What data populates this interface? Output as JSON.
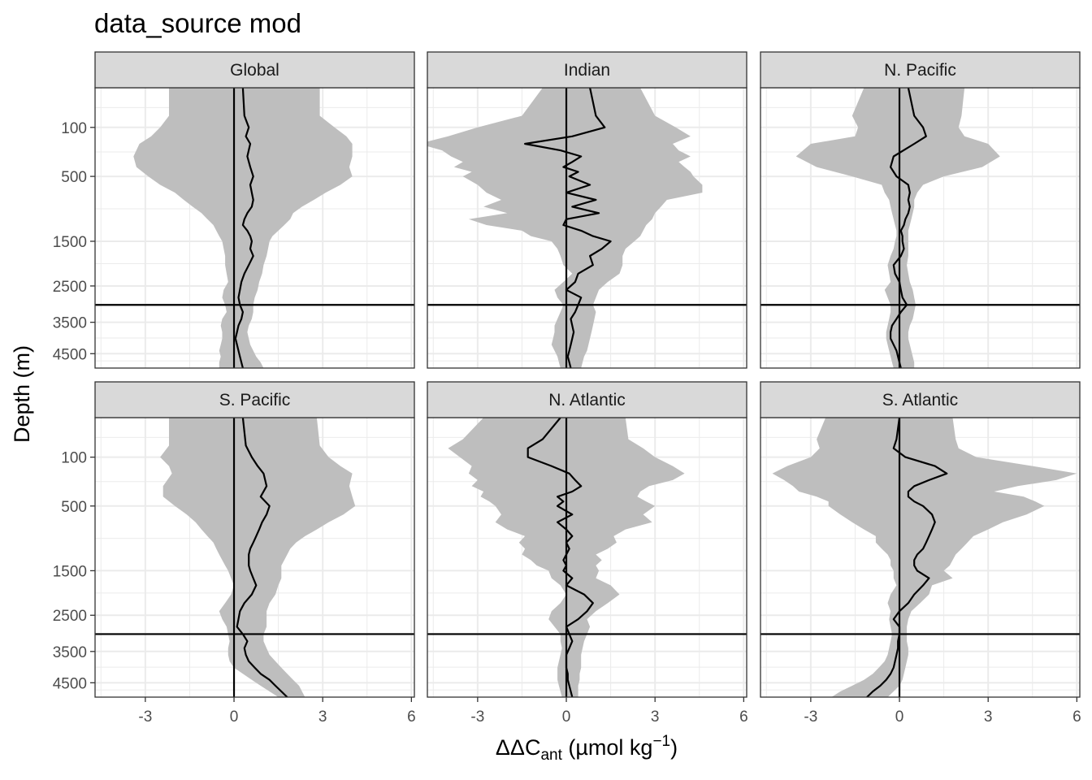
{
  "title": "data_source mod",
  "chart_data": {
    "type": "line",
    "title": "data_source mod",
    "xlabel": "ΔΔCant (µmol kg−1)",
    "xlabel_parts": {
      "main": "ΔΔC",
      "sub": "ant",
      "units_open": " (µmol kg",
      "sup": "−1",
      "units_close": ")"
    },
    "ylabel": "Depth (m)",
    "xlim": [
      -4.7,
      6.1
    ],
    "x_ticks": [
      -3,
      0,
      3,
      6
    ],
    "x_tick_labels": [
      "-3",
      "0",
      "3",
      "6"
    ],
    "y_transform": "sqrt (reversed)",
    "ylim": [
      5000,
      0
    ],
    "y_ticks": [
      100,
      500,
      1500,
      2500,
      3500,
      4500
    ],
    "y_tick_labels": [
      "100",
      "500",
      "1500",
      "2500",
      "3500",
      "4500"
    ],
    "reference_lines": {
      "vertical_x": 0,
      "horizontal_depth": 3000
    },
    "grid": true,
    "colors": {
      "line": "#000000",
      "ribbon": "#bebebe",
      "strip_fill": "#d9d9d9",
      "grid": "#ebebeb"
    },
    "panels": [
      {
        "name": "Global",
        "depth": [
          0,
          50,
          100,
          150,
          200,
          300,
          400,
          500,
          600,
          700,
          800,
          900,
          1000,
          1100,
          1200,
          1300,
          1400,
          1500,
          1650,
          1800,
          2000,
          2200,
          2400,
          2600,
          2800,
          3000,
          3200,
          3400,
          3600,
          3800,
          4000,
          4200,
          4400,
          4600,
          4800,
          5000
        ],
        "mean": [
          0.3,
          0.35,
          0.5,
          0.4,
          0.55,
          0.45,
          0.55,
          0.65,
          0.55,
          0.6,
          0.65,
          0.6,
          0.45,
          0.35,
          0.3,
          0.45,
          0.55,
          0.6,
          0.55,
          0.65,
          0.5,
          0.35,
          0.25,
          0.2,
          0.15,
          0.2,
          0.3,
          0.25,
          0.15,
          0.1,
          0.05,
          0.1,
          0.15,
          0.2,
          0.25,
          0.3
        ],
        "lower": [
          -2.2,
          -2.2,
          -2.5,
          -2.8,
          -3.2,
          -3.4,
          -3.3,
          -2.9,
          -2.5,
          -2.0,
          -1.7,
          -1.4,
          -1.1,
          -0.9,
          -0.7,
          -0.6,
          -0.5,
          -0.4,
          -0.35,
          -0.3,
          -0.3,
          -0.25,
          -0.2,
          -0.35,
          -0.4,
          -0.3,
          -0.25,
          -0.4,
          -0.45,
          -0.4,
          -0.4,
          -0.45,
          -0.5,
          -0.45,
          -0.5,
          -0.5
        ],
        "upper": [
          2.9,
          2.9,
          3.4,
          3.8,
          4.0,
          4.0,
          3.9,
          4.0,
          3.6,
          3.1,
          2.7,
          2.3,
          2.0,
          1.9,
          1.7,
          1.5,
          1.3,
          1.2,
          1.15,
          1.1,
          1.0,
          0.95,
          0.85,
          0.8,
          0.7,
          0.65,
          0.65,
          0.6,
          0.5,
          0.45,
          0.5,
          0.55,
          0.65,
          0.75,
          0.9,
          1.0
        ]
      },
      {
        "name": "Indian",
        "depth": [
          0,
          50,
          100,
          150,
          200,
          250,
          300,
          350,
          400,
          450,
          500,
          600,
          700,
          800,
          900,
          1000,
          1100,
          1200,
          1300,
          1400,
          1500,
          1650,
          1800,
          2000,
          2200,
          2400,
          2600,
          2800,
          3000,
          3200,
          3400,
          3600,
          3800,
          4000,
          4200,
          4400,
          4600,
          4800,
          5000
        ],
        "mean": [
          0.8,
          1.0,
          1.3,
          0.2,
          -1.4,
          -0.2,
          0.5,
          0.2,
          -0.1,
          0.4,
          0.1,
          0.8,
          0.0,
          1.0,
          0.2,
          1.1,
          0.0,
          -0.1,
          0.5,
          0.9,
          1.5,
          1.2,
          0.8,
          0.9,
          0.4,
          0.3,
          0.0,
          0.5,
          0.4,
          0.3,
          0.15,
          0.2,
          0.25,
          0.2,
          0.15,
          0.1,
          0.05,
          0.1,
          0.15
        ],
        "lower": [
          -0.8,
          -1.5,
          -3.0,
          -4.0,
          -5.0,
          -4.2,
          -3.9,
          -3.5,
          -3.8,
          -3.2,
          -3.5,
          -3.0,
          -2.7,
          -2.2,
          -2.8,
          -2.0,
          -3.3,
          -2.7,
          -1.5,
          -1.2,
          -0.5,
          -0.3,
          -0.2,
          -0.1,
          0.2,
          -0.1,
          -0.4,
          -0.3,
          -0.1,
          -0.2,
          -0.3,
          -0.4,
          -0.4,
          -0.45,
          -0.5,
          -0.4,
          -0.3,
          -0.25,
          -0.2
        ],
        "upper": [
          2.5,
          3.0,
          3.7,
          4.2,
          3.6,
          3.8,
          4.2,
          3.8,
          4.0,
          4.2,
          4.3,
          4.6,
          4.6,
          3.4,
          3.2,
          3.0,
          2.9,
          2.7,
          2.6,
          2.5,
          2.3,
          2.0,
          1.9,
          1.9,
          1.8,
          1.4,
          1.1,
          1.0,
          0.9,
          1.0,
          0.95,
          0.9,
          0.85,
          0.8,
          0.75,
          0.7,
          0.6,
          0.55,
          0.5
        ]
      },
      {
        "name": "N. Pacific",
        "depth": [
          0,
          50,
          100,
          150,
          200,
          300,
          400,
          500,
          600,
          700,
          800,
          900,
          1000,
          1100,
          1200,
          1300,
          1400,
          1500,
          1650,
          1800,
          2000,
          2200,
          2400,
          2600,
          2800,
          3000,
          3200,
          3400,
          3600,
          3800,
          4000,
          4200,
          4400,
          4600,
          4800,
          5000
        ],
        "mean": [
          0.3,
          0.5,
          0.8,
          0.9,
          0.5,
          -0.2,
          -0.3,
          -0.1,
          0.3,
          0.35,
          0.3,
          0.35,
          0.3,
          0.2,
          0.15,
          0.05,
          0.1,
          0.1,
          0.15,
          0.05,
          -0.2,
          -0.15,
          0.0,
          0.05,
          0.1,
          0.25,
          0.05,
          -0.1,
          -0.25,
          -0.3,
          -0.3,
          -0.2,
          -0.1,
          -0.05,
          0.0,
          0.05
        ],
        "lower": [
          -1.2,
          -1.6,
          -1.4,
          -1.5,
          -3.0,
          -3.5,
          -2.8,
          -1.6,
          -0.6,
          -0.5,
          -0.35,
          -0.3,
          -0.25,
          -0.2,
          -0.15,
          -0.1,
          -0.1,
          -0.15,
          -0.2,
          -0.3,
          -0.4,
          -0.35,
          -0.3,
          -0.5,
          -0.4,
          -0.3,
          -0.3,
          -0.35,
          -0.4,
          -0.45,
          -0.45,
          -0.4,
          -0.35,
          -0.3,
          -0.25,
          -0.2
        ],
        "upper": [
          2.2,
          2.1,
          2.0,
          2.2,
          3.0,
          3.4,
          2.8,
          1.5,
          0.8,
          0.6,
          0.5,
          0.5,
          0.45,
          0.4,
          0.35,
          0.3,
          0.3,
          0.3,
          0.3,
          0.3,
          0.25,
          0.3,
          0.35,
          0.45,
          0.5,
          0.55,
          0.5,
          0.45,
          0.35,
          0.3,
          0.3,
          0.35,
          0.4,
          0.45,
          0.5,
          0.5
        ]
      },
      {
        "name": "S. Pacific",
        "depth": [
          0,
          50,
          100,
          150,
          200,
          300,
          400,
          500,
          600,
          700,
          800,
          900,
          1000,
          1100,
          1200,
          1300,
          1400,
          1500,
          1650,
          1800,
          2000,
          2200,
          2400,
          2600,
          2800,
          3000,
          3200,
          3400,
          3600,
          3800,
          4000,
          4200,
          4400,
          4600,
          4800,
          5000
        ],
        "mean": [
          0.3,
          0.4,
          0.6,
          0.8,
          1.0,
          1.1,
          0.9,
          1.2,
          1.1,
          0.95,
          0.85,
          0.75,
          0.65,
          0.55,
          0.5,
          0.5,
          0.5,
          0.55,
          0.65,
          0.75,
          0.6,
          0.35,
          0.2,
          0.15,
          0.1,
          0.3,
          0.45,
          0.35,
          0.4,
          0.5,
          0.7,
          0.9,
          1.2,
          1.4,
          1.6,
          1.8
        ],
        "lower": [
          -2.2,
          -2.2,
          -2.5,
          -2.2,
          -2.1,
          -2.4,
          -2.4,
          -2.0,
          -1.6,
          -1.3,
          -1.1,
          -0.9,
          -0.7,
          -0.6,
          -0.5,
          -0.4,
          -0.3,
          -0.2,
          -0.1,
          0.0,
          -0.1,
          -0.3,
          -0.5,
          -0.4,
          -0.25,
          -0.2,
          -0.15,
          -0.2,
          -0.2,
          -0.15,
          0.0,
          0.3,
          0.6,
          0.9,
          1.2,
          1.5
        ],
        "upper": [
          2.8,
          2.9,
          3.2,
          3.6,
          4.0,
          3.9,
          4.0,
          4.1,
          3.7,
          3.2,
          2.8,
          2.4,
          2.1,
          1.9,
          1.8,
          1.7,
          1.6,
          1.6,
          1.6,
          1.5,
          1.4,
          1.2,
          1.1,
          1.1,
          1.1,
          1.0,
          1.0,
          1.1,
          1.2,
          1.4,
          1.6,
          1.8,
          2.0,
          2.2,
          2.3,
          2.4
        ]
      },
      {
        "name": "N. Atlantic",
        "depth": [
          0,
          30,
          60,
          100,
          150,
          200,
          250,
          300,
          350,
          400,
          450,
          500,
          600,
          700,
          800,
          900,
          1000,
          1100,
          1200,
          1300,
          1400,
          1500,
          1650,
          1800,
          2000,
          2200,
          2400,
          2600,
          2800,
          3000,
          3200,
          3400,
          3600,
          3800,
          4000,
          4200,
          4400,
          4600,
          4800,
          5000
        ],
        "mean": [
          -0.2,
          -0.8,
          -1.3,
          -1.3,
          -0.5,
          0.1,
          0.3,
          0.5,
          0.2,
          -0.3,
          -0.1,
          -0.3,
          0.2,
          -0.3,
          0.0,
          0.2,
          0.0,
          0.1,
          0.0,
          -0.1,
          0.0,
          -0.1,
          0.2,
          0.0,
          0.6,
          0.9,
          0.7,
          0.4,
          0.0,
          0.1,
          0.2,
          0.1,
          0.0,
          0.0,
          0.0,
          0.05,
          0.05,
          0.1,
          0.15,
          0.2
        ],
        "lower": [
          -2.8,
          -3.5,
          -4.0,
          -3.6,
          -3.2,
          -3.3,
          -3.0,
          -3.2,
          -2.8,
          -2.9,
          -2.6,
          -2.4,
          -2.2,
          -2.4,
          -2.0,
          -1.4,
          -1.6,
          -1.4,
          -1.5,
          -1.2,
          -1.0,
          -0.6,
          -0.5,
          -0.2,
          0.0,
          -0.2,
          -0.5,
          -0.6,
          -0.4,
          -0.2,
          -0.2,
          -0.15,
          -0.2,
          -0.25,
          -0.3,
          -0.3,
          -0.3,
          -0.25,
          -0.2,
          -0.15
        ],
        "upper": [
          2.0,
          2.1,
          2.6,
          3.0,
          3.6,
          4.0,
          3.6,
          2.8,
          2.5,
          2.4,
          2.7,
          3.0,
          2.6,
          2.9,
          2.0,
          1.6,
          1.7,
          1.4,
          1.0,
          1.2,
          1.0,
          1.1,
          1.0,
          1.5,
          1.8,
          1.4,
          1.0,
          0.7,
          0.8,
          0.7,
          0.6,
          0.55,
          0.5,
          0.5,
          0.5,
          0.45,
          0.45,
          0.4,
          0.4,
          0.4
        ]
      },
      {
        "name": "S. Atlantic",
        "depth": [
          0,
          30,
          60,
          100,
          150,
          200,
          250,
          300,
          350,
          400,
          450,
          500,
          600,
          700,
          800,
          900,
          1000,
          1100,
          1200,
          1300,
          1400,
          1500,
          1650,
          1800,
          2000,
          2200,
          2400,
          2600,
          2800,
          3000,
          3200,
          3400,
          3600,
          3800,
          4000,
          4200,
          4400,
          4600,
          4800,
          5000
        ],
        "mean": [
          0.0,
          -0.1,
          -0.2,
          0.2,
          1.2,
          1.6,
          1.0,
          0.5,
          0.3,
          0.3,
          0.5,
          0.8,
          1.1,
          1.2,
          1.1,
          1.0,
          0.9,
          0.8,
          0.6,
          0.5,
          0.5,
          0.6,
          1.0,
          0.8,
          0.5,
          0.3,
          0.0,
          -0.2,
          0.0,
          0.0,
          -0.05,
          -0.05,
          -0.1,
          -0.15,
          -0.2,
          -0.3,
          -0.45,
          -0.65,
          -0.9,
          -1.1
        ],
        "lower": [
          -2.5,
          -2.8,
          -2.7,
          -3.0,
          -3.8,
          -4.3,
          -3.9,
          -3.6,
          -3.4,
          -2.8,
          -2.4,
          -2.4,
          -2.0,
          -1.6,
          -1.2,
          -0.8,
          -0.8,
          -0.6,
          -0.4,
          -0.3,
          -0.3,
          -0.2,
          -0.2,
          -0.1,
          -0.3,
          -0.4,
          -0.3,
          -0.35,
          -0.3,
          -0.25,
          -0.3,
          -0.35,
          -0.4,
          -0.5,
          -0.7,
          -0.9,
          -1.2,
          -1.6,
          -2.0,
          -2.3
        ],
        "upper": [
          1.8,
          1.9,
          2.0,
          2.6,
          4.5,
          6.0,
          5.3,
          4.0,
          3.2,
          4.2,
          4.6,
          4.9,
          4.3,
          3.5,
          3.0,
          2.5,
          2.3,
          2.1,
          1.9,
          1.8,
          1.7,
          1.5,
          1.8,
          1.1,
          1.0,
          0.7,
          0.4,
          0.3,
          0.25,
          0.25,
          0.25,
          0.3,
          0.3,
          0.25,
          0.2,
          0.15,
          0.1,
          0.0,
          -0.2,
          -0.4
        ]
      }
    ]
  }
}
